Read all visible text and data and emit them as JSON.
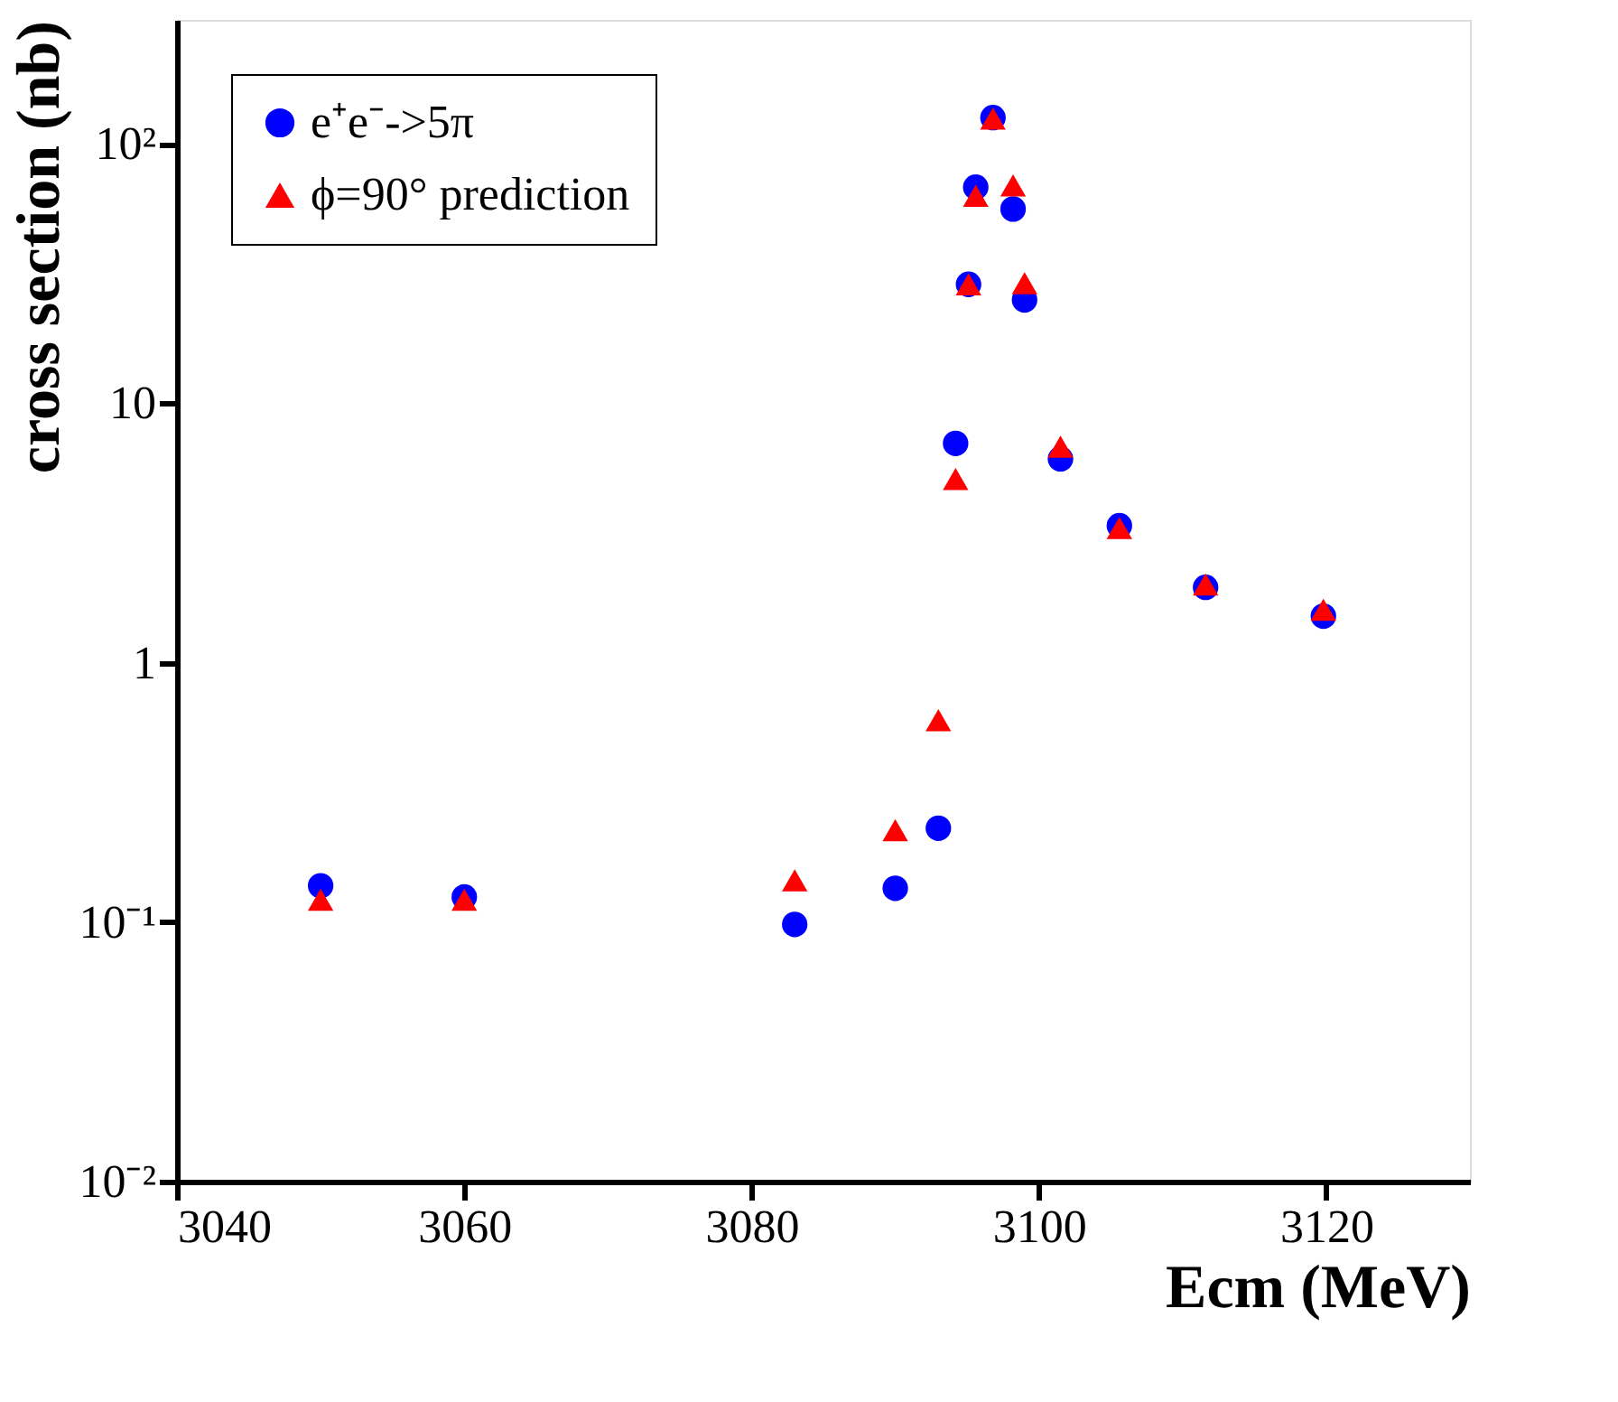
{
  "chart_data": {
    "type": "scatter",
    "xlabel": "Ecm (MeV)",
    "ylabel": "cross section (nb)",
    "log": "y",
    "grid": false,
    "legend": "top left",
    "xlim": [
      3040,
      3130
    ],
    "xticks": [
      3040,
      3060,
      3080,
      3100,
      3120
    ],
    "ylim": [
      0.01,
      300
    ],
    "yticks": [
      {
        "value": 0.01,
        "label": "10⁻²"
      },
      {
        "value": 0.1,
        "label": "10⁻¹"
      },
      1,
      10,
      {
        "value": 100,
        "label": "10²"
      }
    ],
    "x": [
      3050,
      3060,
      3083,
      3090,
      3093,
      3094.2,
      3095.1,
      3095.6,
      3096.8,
      3098.2,
      3099.0,
      3101.5,
      3105.6,
      3111.6,
      3119.8
    ],
    "series": [
      {
        "name": "e⁺e⁻->5π",
        "color": "#0000ff",
        "marker": "circle",
        "values": [
          0.138,
          0.125,
          0.098,
          0.135,
          0.23,
          7.0,
          28.7,
          68,
          126,
          56,
          25,
          6.1,
          3.37,
          1.95,
          1.51
        ]
      },
      {
        "name": "ϕ=90° prediction",
        "color": "#ff0000",
        "marker": "triangle",
        "values": [
          0.122,
          0.122,
          0.145,
          0.226,
          0.6,
          5.1,
          28.7,
          63,
          125,
          69,
          29,
          6.8,
          3.3,
          2.0,
          1.6
        ]
      }
    ]
  }
}
